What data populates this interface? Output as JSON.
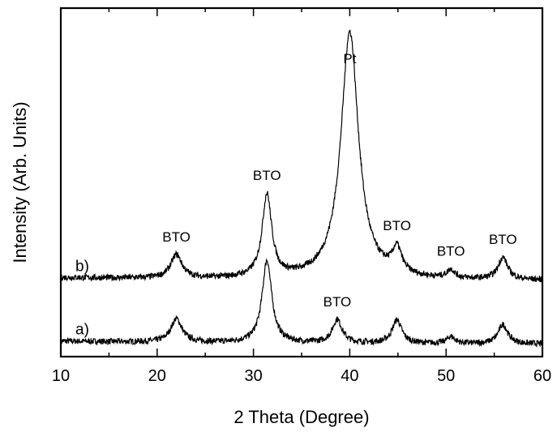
{
  "chart_data": {
    "type": "line",
    "xlabel": "2 Theta (Degree)",
    "ylabel": "Intensity (Arb. Units)",
    "xlim": [
      10,
      60
    ],
    "xticks": [
      10,
      20,
      30,
      40,
      50,
      60
    ],
    "yticks_shown": false,
    "grid": false,
    "series": [
      {
        "label": "a)",
        "baseline": 0.0,
        "peaks": [
          {
            "x": 22.0,
            "height": 0.85,
            "width": 0.7
          },
          {
            "x": 31.4,
            "height": 3.0,
            "width": 0.6
          },
          {
            "x": 38.7,
            "height": 0.85,
            "width": 0.6
          },
          {
            "x": 44.9,
            "height": 0.85,
            "width": 0.6
          },
          {
            "x": 50.5,
            "height": 0.25,
            "width": 0.5
          },
          {
            "x": 55.9,
            "height": 0.7,
            "width": 0.6
          }
        ]
      },
      {
        "label": "b)",
        "baseline": 2.3,
        "peaks": [
          {
            "x": 22.0,
            "height": 0.85,
            "width": 0.7
          },
          {
            "x": 31.4,
            "height": 3.0,
            "width": 0.6
          },
          {
            "x": 40.0,
            "height": 9.0,
            "width": 1.1
          },
          {
            "x": 44.9,
            "height": 0.9,
            "width": 0.6
          },
          {
            "x": 50.5,
            "height": 0.3,
            "width": 0.5
          },
          {
            "x": 55.9,
            "height": 0.8,
            "width": 0.6
          }
        ]
      }
    ],
    "annotations": [
      {
        "text": "BTO",
        "x": 22.0,
        "series": "b)"
      },
      {
        "text": "BTO",
        "x": 31.4,
        "series": "b)"
      },
      {
        "text": "Pt",
        "x": 40.0,
        "series": "b)"
      },
      {
        "text": "BTO",
        "x": 44.9,
        "series": "b)"
      },
      {
        "text": "BTO",
        "x": 50.5,
        "series": "b)"
      },
      {
        "text": "BTO",
        "x": 55.9,
        "series": "b)"
      },
      {
        "text": "BTO",
        "x": 38.7,
        "series": "a)"
      }
    ]
  }
}
